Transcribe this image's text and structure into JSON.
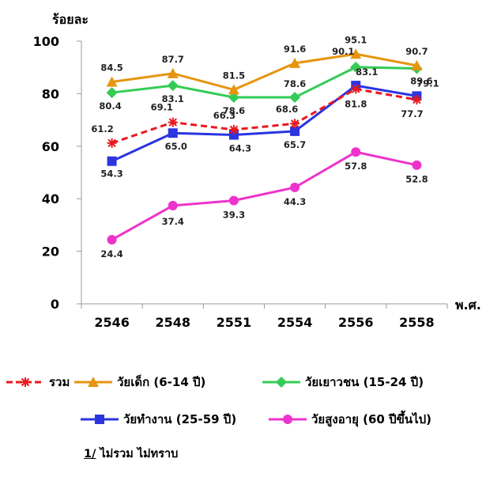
{
  "chart_data": {
    "type": "line",
    "ylabel": "ร้อยละ",
    "xlabel": "พ.ศ.",
    "categories": [
      "2546",
      "2548",
      "2551",
      "2554",
      "2556",
      "2558"
    ],
    "yticks": [
      "0",
      "20",
      "40",
      "60",
      "80",
      "100"
    ],
    "ylim": [
      0,
      100
    ],
    "grid": false,
    "legend_position": "bottom",
    "series": [
      {
        "key": "total",
        "name": "รวม",
        "color": "#e8191e",
        "marker": "asterisk",
        "dashed": true,
        "values": [
          61.2,
          69.1,
          66.3,
          68.6,
          81.8,
          77.7
        ],
        "labels": [
          "61.2",
          "69.1",
          "66.3",
          "68.6",
          "81.8",
          "77.7"
        ]
      },
      {
        "key": "child",
        "name": "วัยเด็ก (6-14 ปี)",
        "color": "#e6950f",
        "marker": "triangle",
        "dashed": false,
        "values": [
          84.5,
          87.7,
          81.5,
          91.6,
          95.1,
          90.7
        ],
        "labels": [
          "84.5",
          "87.7",
          "81.5",
          "91.6",
          "95.1",
          "90.7"
        ]
      },
      {
        "key": "youth",
        "name": "วัยเยาวชน (15-24 ปี)",
        "color": "#33cc55",
        "marker": "diamond",
        "dashed": false,
        "values": [
          80.4,
          83.1,
          78.6,
          78.6,
          90.1,
          89.6
        ],
        "labels": [
          "80.4",
          "83.1",
          "78.6",
          "78.6",
          "90.1",
          "89.6"
        ]
      },
      {
        "key": "working",
        "name": "วัยทำงาน (25-59 ปี)",
        "color": "#2a35e0",
        "marker": "square",
        "dashed": false,
        "values": [
          54.3,
          65.0,
          64.3,
          65.7,
          83.1,
          79.1
        ],
        "labels": [
          "54.3",
          "65.0",
          "64.3",
          "65.7",
          "83.1",
          "79.1"
        ]
      },
      {
        "key": "elderly",
        "name": "วัยสูงอายุ (60 ปีขึ้นไป)",
        "color": "#ee33cc",
        "marker": "circle",
        "dashed": false,
        "values": [
          24.4,
          37.4,
          39.3,
          44.3,
          57.8,
          52.8
        ],
        "labels": [
          "24.4",
          "37.4",
          "39.3",
          "44.3",
          "57.8",
          "52.8"
        ]
      }
    ]
  },
  "footnote": {
    "mark": "1/",
    "text": " ไม่รวม ไม่ทราบ"
  }
}
